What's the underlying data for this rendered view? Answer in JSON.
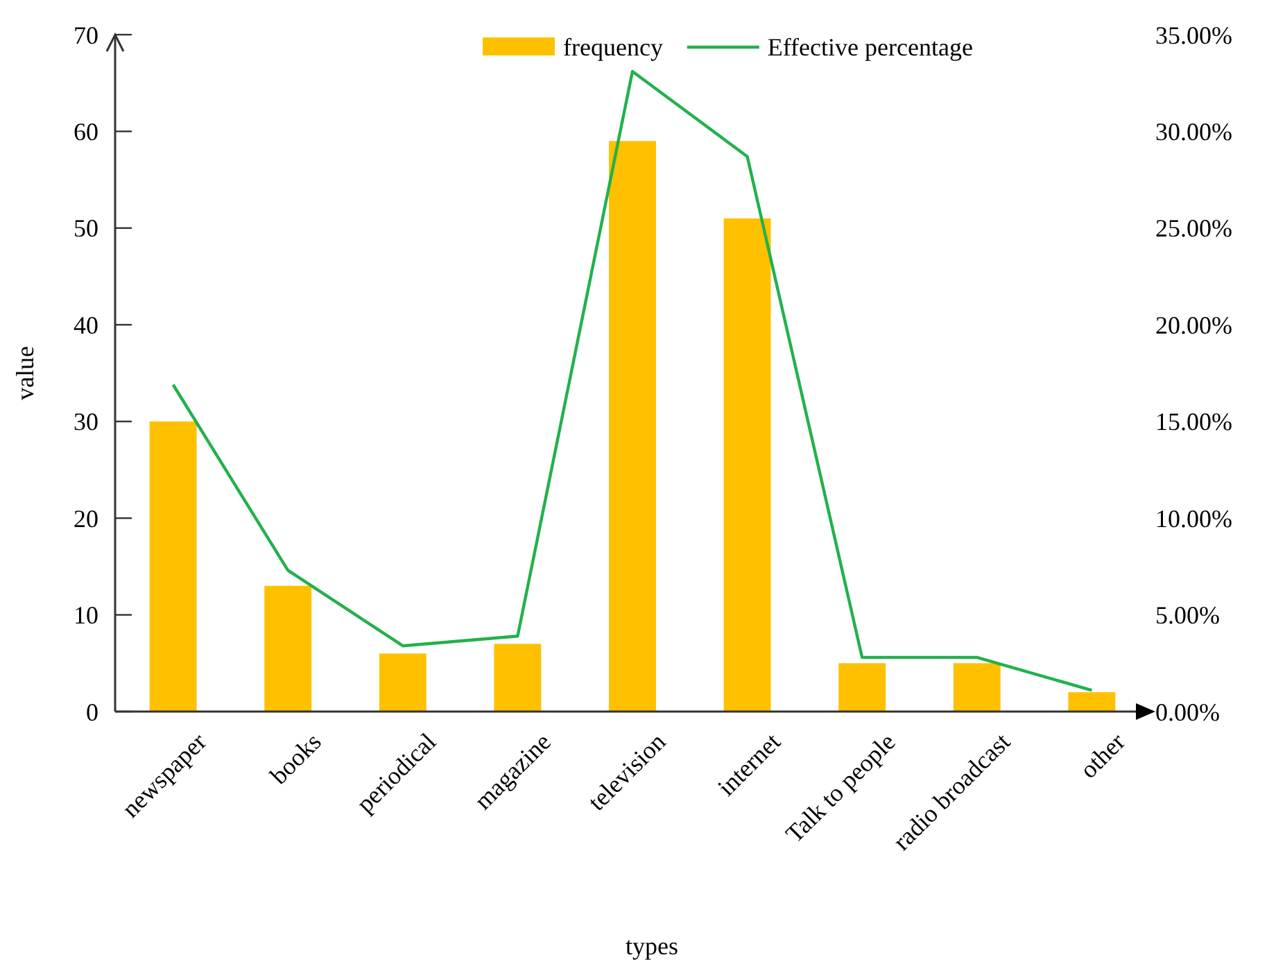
{
  "chart_data": {
    "type": "bar",
    "xlabel": "types",
    "ylabel": "value",
    "categories": [
      "newspaper",
      "books",
      "periodical",
      "magazine",
      "television",
      "internet",
      "Talk to people",
      "radio broadcast",
      "other"
    ],
    "series": [
      {
        "name": "frequency",
        "color": "#ffc000",
        "values": [
          30,
          13,
          6,
          7,
          59,
          51,
          5,
          5,
          2
        ]
      },
      {
        "name": "Effective percentage",
        "type": "line",
        "axis": "y2",
        "color": "#22b14c",
        "values": [
          16.9,
          7.3,
          3.4,
          3.9,
          33.1,
          28.7,
          2.8,
          2.8,
          1.1
        ]
      }
    ],
    "ylim": [
      0,
      70
    ],
    "yticks": [
      0,
      10,
      20,
      30,
      40,
      50,
      60,
      70
    ],
    "y2lim": [
      0,
      35
    ],
    "y2ticks": [
      {
        "value": 0,
        "label": "0.00%"
      },
      {
        "value": 5,
        "label": "5.00%"
      },
      {
        "value": 10,
        "label": "10.00%"
      },
      {
        "value": 15,
        "label": "15.00%"
      },
      {
        "value": 20,
        "label": "20.00%"
      },
      {
        "value": 25,
        "label": "25.00%"
      },
      {
        "value": 30,
        "label": "30.00%"
      },
      {
        "value": 35,
        "label": "35.00%"
      }
    ],
    "legend": "top",
    "grid": false,
    "marker": "none",
    "line_style": "solid"
  }
}
